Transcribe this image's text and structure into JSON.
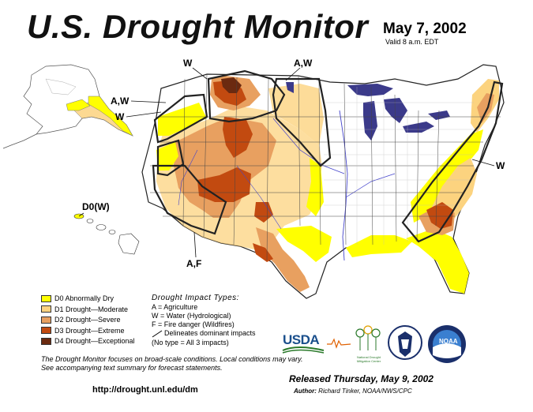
{
  "header": {
    "title": "U.S. Drought Monitor",
    "date": "May 7, 2002",
    "valid": "Valid 8 a.m. EDT"
  },
  "map_labels": {
    "w_nw": "W",
    "aw_north": "A,W",
    "aw_west": "A,W",
    "w_west": "W",
    "d0_hawaii": "D0(W)",
    "w_east": "W",
    "af_southwest": "A,F"
  },
  "legend": {
    "items": [
      {
        "label": "D0 Abnormally Dry",
        "color": "#ffff00"
      },
      {
        "label": "D1 Drought—Moderate",
        "color": "#fcd37f"
      },
      {
        "label": "D2 Drought—Severe",
        "color": "#ffaa00"
      },
      {
        "label": "D3 Drought—Extreme",
        "color": "#e60000"
      },
      {
        "label": "D4 Drought—Exceptional",
        "color": "#730000"
      }
    ]
  },
  "impact": {
    "title": "Drought Impact Types:",
    "a": "A = Agriculture",
    "w": "W = Water (Hydrological)",
    "f": "F = Fire danger (Wildfires)",
    "dominant": "Delineates dominant impacts",
    "none": "(No type = All 3 impacts)"
  },
  "disclaimer": "The Drought Monitor focuses on broad-scale conditions. Local conditions may vary. See accompanying text summary for forecast statements.",
  "url": "http://drought.unl.edu/dm",
  "released": "Released Thursday, May 9, 2002",
  "author": {
    "label": "Author:",
    "name": "Richard Tinker, NOAA/NWS/CPC"
  },
  "logos": {
    "usda": "USDA",
    "ndmc": "National Drought Mitigation Center"
  },
  "colors": {
    "d0": "#ffff00",
    "d1": "#fcd37f",
    "d2": "#ffaa00",
    "d3": "#e60000",
    "d4": "#730000",
    "lakes": "#3b3a8a",
    "water": "#4444cc"
  }
}
